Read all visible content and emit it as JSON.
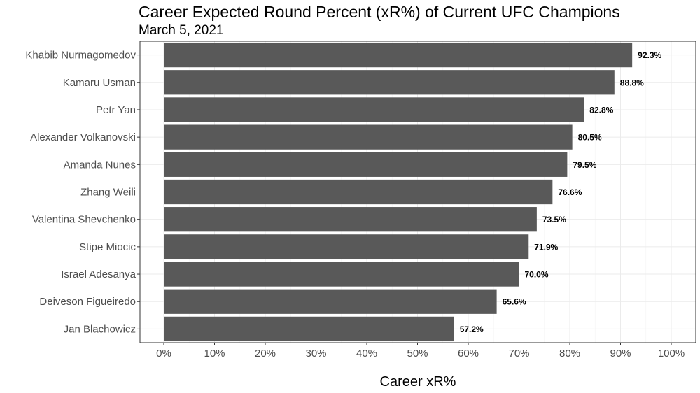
{
  "chart_data": {
    "type": "bar",
    "orientation": "horizontal",
    "title": "Career Expected Round Percent (xR%) of Current UFC Champions",
    "subtitle": "March 5, 2021",
    "xlabel": "Career xR%",
    "ylabel": "",
    "categories": [
      "Khabib Nurmagomedov",
      "Kamaru Usman",
      "Petr Yan",
      "Alexander Volkanovski",
      "Amanda Nunes",
      "Zhang Weili",
      "Valentina Shevchenko",
      "Stipe Miocic",
      "Israel Adesanya",
      "Deiveson Figueiredo",
      "Jan Blachowicz"
    ],
    "values": [
      92.3,
      88.8,
      82.8,
      80.5,
      79.5,
      76.6,
      73.5,
      71.9,
      70.0,
      65.6,
      57.2
    ],
    "value_labels": [
      "92.3%",
      "88.8%",
      "82.8%",
      "80.5%",
      "79.5%",
      "76.6%",
      "73.5%",
      "71.9%",
      "70.0%",
      "65.6%",
      "57.2%"
    ],
    "xlim": [
      0,
      100
    ],
    "x_ticks": [
      0,
      10,
      20,
      30,
      40,
      50,
      60,
      70,
      80,
      90,
      100
    ],
    "x_tick_labels": [
      "0%",
      "10%",
      "20%",
      "30%",
      "40%",
      "50%",
      "60%",
      "70%",
      "80%",
      "90%",
      "100%"
    ],
    "grid": true,
    "colors": {
      "bar": "#595959",
      "grid": "#ebebeb",
      "border": "#333333"
    }
  }
}
